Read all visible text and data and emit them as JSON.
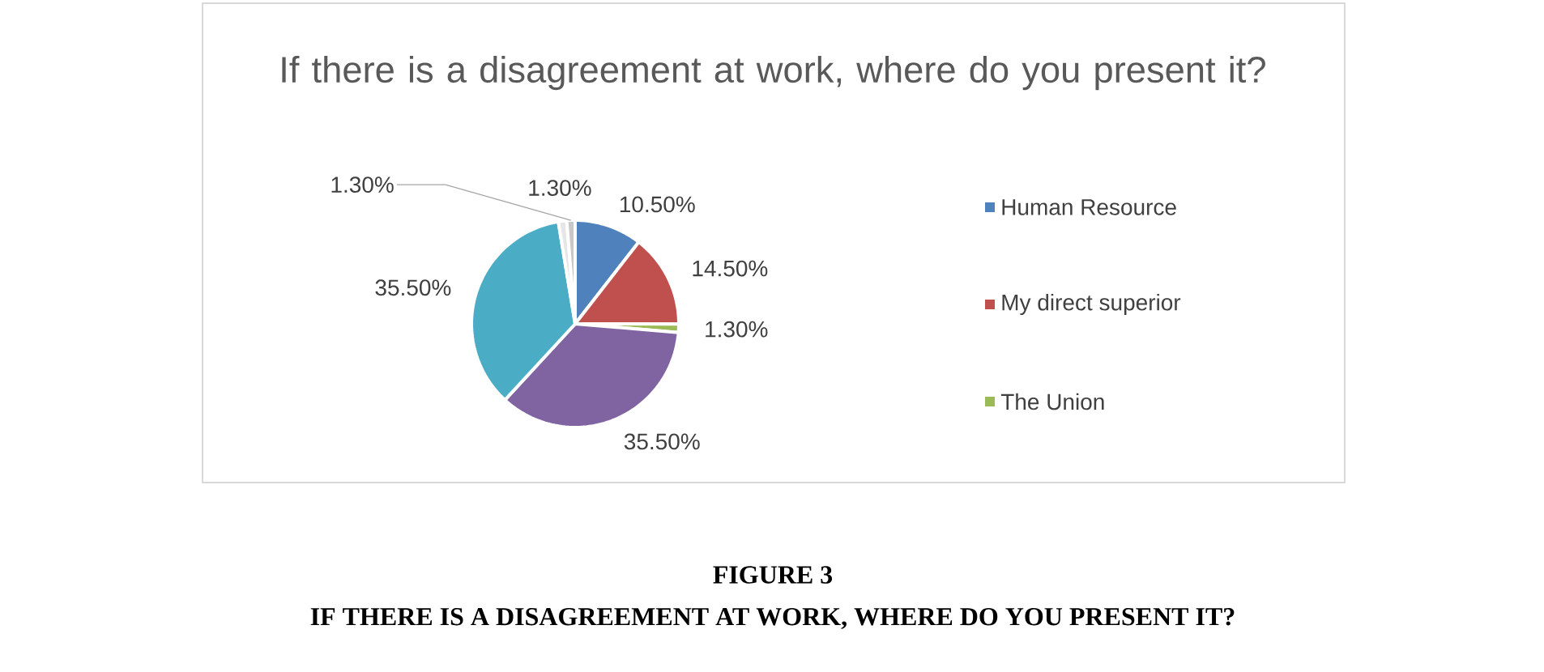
{
  "chart_data": {
    "type": "pie",
    "title": "If there is a disagreement at work, where do you present it?",
    "categories": [
      "Human Resource",
      "My direct superior",
      "The Union",
      null,
      null,
      null,
      null
    ],
    "values": [
      10.5,
      14.5,
      1.3,
      35.5,
      35.5,
      1.3,
      1.3
    ],
    "colors": [
      "#4f81bd",
      "#c0504d",
      "#9bbb59",
      "#8064a2",
      "#4bacc6",
      "#e6e6e6",
      "#c8c8c8"
    ],
    "value_labels": [
      "10.50%",
      "14.50%",
      "1.30%",
      "35.50%",
      "35.50%",
      "1.30%",
      "1.30%"
    ],
    "legend": "right",
    "annotations": [
      "FIGURE 3",
      "IF THERE IS A DISAGREEMENT AT WORK, WHERE DO YOU PRESENT IT?"
    ]
  }
}
